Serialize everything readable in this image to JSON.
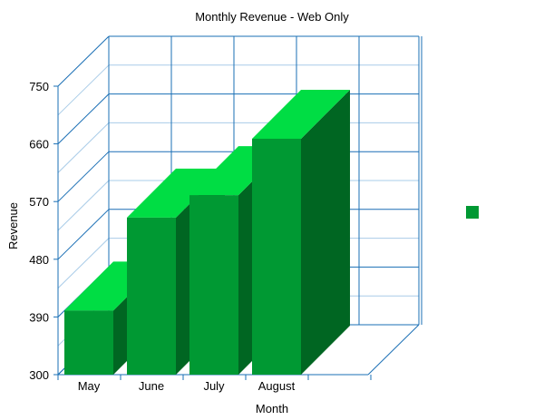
{
  "chart_data": {
    "type": "bar",
    "title": "Monthly Revenue - Web Only",
    "xlabel": "Month",
    "ylabel": "Revenue",
    "categories": [
      "May",
      "June",
      "July",
      "August"
    ],
    "series": [
      {
        "values": [
          400,
          545,
          580,
          668
        ]
      }
    ],
    "ylim": [
      300,
      750
    ],
    "yticks": [
      300,
      390,
      480,
      570,
      660,
      750
    ],
    "grid": true,
    "three_d": true,
    "colors": {
      "front": "#009933",
      "top": "#00dd44",
      "side": "#006622",
      "grid": "#1a6fb5",
      "minor_grid": "#a9cce8"
    },
    "legend": {
      "position": "right"
    }
  }
}
